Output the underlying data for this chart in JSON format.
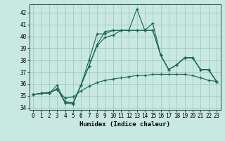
{
  "title": "",
  "xlabel": "Humidex (Indice chaleur)",
  "ylabel": "",
  "xlim": [
    -0.5,
    23.5
  ],
  "ylim": [
    33.8,
    42.7
  ],
  "yticks": [
    34,
    35,
    36,
    37,
    38,
    39,
    40,
    41,
    42
  ],
  "xticks": [
    0,
    1,
    2,
    3,
    4,
    5,
    6,
    7,
    8,
    9,
    10,
    11,
    12,
    13,
    14,
    15,
    16,
    17,
    18,
    19,
    20,
    21,
    22,
    23
  ],
  "background_color": "#c8e8e0",
  "grid_color": "#a0c8c0",
  "line_color": "#1a6655",
  "series": [
    {
      "x": [
        0,
        1,
        2,
        3,
        4,
        5,
        6,
        7,
        8,
        9,
        10,
        11,
        12,
        13,
        14,
        15,
        16,
        17,
        18,
        19,
        20,
        21,
        22,
        23
      ],
      "y": [
        35.1,
        35.2,
        35.2,
        35.6,
        34.4,
        34.4,
        35.9,
        37.5,
        39.3,
        40.4,
        40.5,
        40.5,
        40.5,
        42.3,
        40.5,
        41.1,
        38.4,
        37.2,
        37.6,
        38.2,
        38.2,
        37.2,
        37.2,
        36.2
      ]
    },
    {
      "x": [
        0,
        1,
        2,
        3,
        4,
        5,
        6,
        7,
        8,
        9,
        10,
        11,
        12,
        13,
        14,
        15,
        16,
        17,
        18,
        19,
        20,
        21,
        22,
        23
      ],
      "y": [
        35.1,
        35.2,
        35.2,
        35.9,
        34.4,
        34.3,
        35.9,
        38.0,
        40.2,
        40.2,
        40.5,
        40.5,
        40.5,
        40.5,
        40.5,
        40.5,
        38.4,
        37.2,
        37.6,
        38.2,
        38.2,
        37.2,
        37.2,
        36.2
      ]
    },
    {
      "x": [
        0,
        1,
        2,
        3,
        4,
        5,
        6,
        7,
        8,
        9,
        10,
        11,
        12,
        13,
        14,
        15,
        16,
        17,
        18,
        19,
        20,
        21,
        22,
        23
      ],
      "y": [
        35.1,
        35.2,
        35.2,
        35.6,
        34.5,
        34.4,
        35.9,
        37.5,
        39.2,
        39.9,
        40.1,
        40.5,
        40.5,
        40.5,
        40.5,
        40.5,
        38.4,
        37.2,
        37.6,
        38.2,
        38.2,
        37.2,
        37.2,
        36.2
      ]
    },
    {
      "x": [
        0,
        1,
        2,
        3,
        4,
        5,
        6,
        7,
        8,
        9,
        10,
        11,
        12,
        13,
        14,
        15,
        16,
        17,
        18,
        19,
        20,
        21,
        22,
        23
      ],
      "y": [
        35.1,
        35.2,
        35.3,
        35.5,
        34.8,
        34.9,
        35.4,
        35.8,
        36.1,
        36.3,
        36.4,
        36.5,
        36.6,
        36.7,
        36.7,
        36.8,
        36.8,
        36.8,
        36.8,
        36.8,
        36.7,
        36.5,
        36.3,
        36.2
      ]
    }
  ]
}
